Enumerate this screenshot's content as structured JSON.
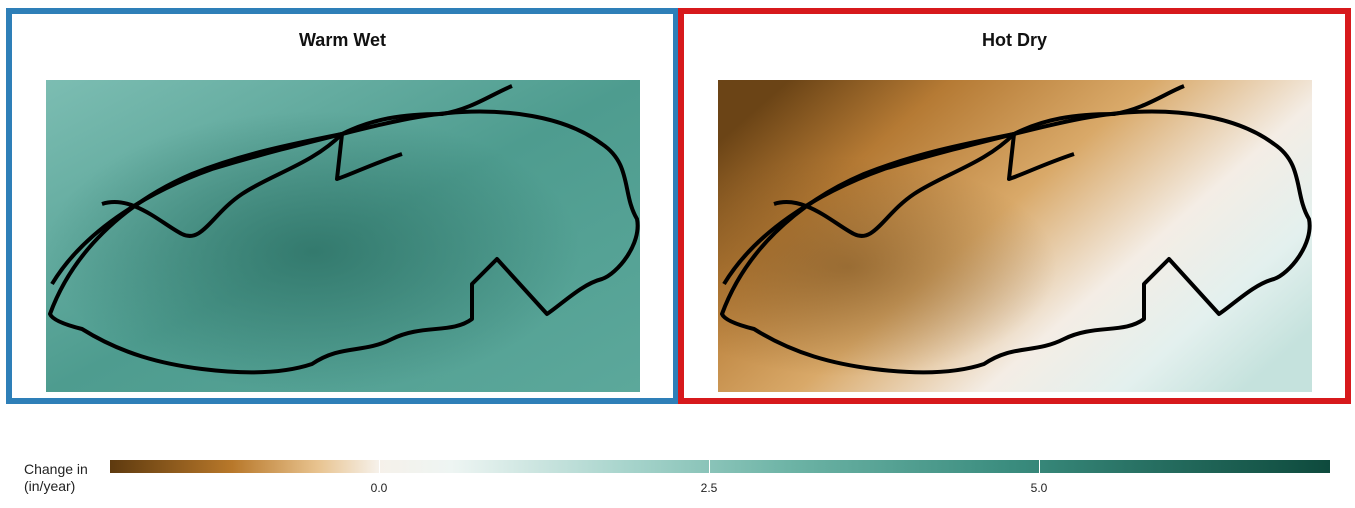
{
  "panels": {
    "left": {
      "title": "Warm Wet"
    },
    "right": {
      "title": "Hot Dry"
    }
  },
  "legend": {
    "title_line1": "Change in",
    "title_line2": "(in/year)",
    "ticks": [
      "0.0",
      "2.5",
      "5.0"
    ]
  },
  "colors": {
    "left_border": "#2e7fb8",
    "right_border": "#d7191c",
    "boundary": "#000000",
    "dry_dark": "#5e3a0f",
    "neutral": "#f6f1ea",
    "wet_dark": "#0e4a3d"
  }
}
